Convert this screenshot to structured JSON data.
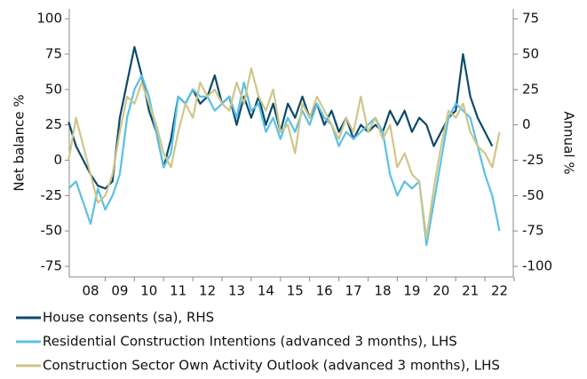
{
  "chart_data": {
    "type": "line",
    "y_label": "Net balance %",
    "y2_label": "Annual %",
    "x": [
      2007.75,
      2008,
      2008.25,
      2008.5,
      2008.75,
      2009,
      2009.25,
      2009.5,
      2009.75,
      2010,
      2010.25,
      2010.5,
      2010.75,
      2011,
      2011.25,
      2011.5,
      2011.75,
      2012,
      2012.25,
      2012.5,
      2012.75,
      2013,
      2013.25,
      2013.5,
      2013.75,
      2014,
      2014.25,
      2014.5,
      2014.75,
      2015,
      2015.25,
      2015.5,
      2015.75,
      2016,
      2016.25,
      2016.5,
      2016.75,
      2017,
      2017.25,
      2017.5,
      2017.75,
      2018,
      2018.25,
      2018.5,
      2018.75,
      2019,
      2019.25,
      2019.5,
      2019.75,
      2020,
      2020.25,
      2020.5,
      2020.75,
      2021,
      2021.25,
      2021.5,
      2021.75,
      2022,
      2022.25,
      2022.5
    ],
    "series": [
      {
        "name": "House consents (sa), RHS",
        "color": "#0b4a6b",
        "axis": "y2",
        "values": [
          2,
          -15,
          -25,
          -35,
          -43,
          -45,
          -40,
          5,
          30,
          55,
          35,
          10,
          -5,
          -30,
          -10,
          20,
          15,
          25,
          15,
          20,
          35,
          15,
          20,
          0,
          20,
          5,
          20,
          0,
          15,
          -5,
          15,
          5,
          20,
          5,
          15,
          0,
          10,
          -5,
          5,
          -10,
          0,
          -5,
          0,
          -5,
          10,
          0,
          10,
          -5,
          5,
          0,
          -15,
          -5,
          5,
          10,
          50,
          20,
          5,
          -5,
          -15,
          null
        ]
      },
      {
        "name": "Residential Construction Intentions (advanced 3 months), LHS",
        "color": "#5bc0e6",
        "values": [
          -20,
          -15,
          -30,
          -45,
          -20,
          -35,
          -25,
          -10,
          30,
          50,
          60,
          45,
          20,
          -5,
          5,
          45,
          40,
          50,
          45,
          45,
          35,
          40,
          45,
          30,
          55,
          35,
          40,
          20,
          30,
          15,
          30,
          20,
          35,
          25,
          40,
          30,
          25,
          10,
          20,
          15,
          20,
          25,
          30,
          20,
          -10,
          -25,
          -15,
          -20,
          -15,
          -60,
          -30,
          0,
          30,
          40,
          35,
          30,
          10,
          -10,
          -25,
          -50
        ]
      },
      {
        "name": "Construction Sector Own Activity Outlook (advanced 3 months), LHS",
        "color": "#cfc68a",
        "values": [
          0,
          30,
          10,
          -10,
          -30,
          -25,
          -10,
          20,
          45,
          40,
          55,
          40,
          25,
          5,
          -5,
          20,
          40,
          30,
          55,
          45,
          50,
          40,
          35,
          55,
          40,
          65,
          45,
          35,
          50,
          20,
          25,
          5,
          40,
          30,
          45,
          35,
          25,
          15,
          30,
          20,
          45,
          20,
          30,
          15,
          25,
          -5,
          5,
          -10,
          -15,
          -55,
          -20,
          10,
          35,
          30,
          40,
          20,
          10,
          5,
          -5,
          20
        ]
      }
    ],
    "xlim": [
      2007.77,
      2022.97
    ],
    "xticks": [
      {
        "value": 2008.5,
        "label": "08"
      },
      {
        "value": 2009.5,
        "label": "09"
      },
      {
        "value": 2010.5,
        "label": "10"
      },
      {
        "value": 2011.5,
        "label": "11"
      },
      {
        "value": 2012.5,
        "label": "12"
      },
      {
        "value": 2013.5,
        "label": "13"
      },
      {
        "value": 2014.5,
        "label": "14"
      },
      {
        "value": 2015.5,
        "label": "15"
      },
      {
        "value": 2016.5,
        "label": "16"
      },
      {
        "value": 2017.5,
        "label": "17"
      },
      {
        "value": 2018.5,
        "label": "18"
      },
      {
        "value": 2019.5,
        "label": "19"
      },
      {
        "value": 2020.5,
        "label": "20"
      },
      {
        "value": 2021.5,
        "label": "21"
      },
      {
        "value": 2022.5,
        "label": "22"
      }
    ],
    "ylim": [
      -82.5,
      107
    ],
    "yticks": [
      -75,
      -50,
      -25,
      0,
      25,
      50,
      75,
      100
    ],
    "y2lim": [
      -107.5,
      82
    ],
    "y2ticks": [
      -100,
      -75,
      -50,
      -25,
      0,
      25,
      50,
      75
    ]
  }
}
